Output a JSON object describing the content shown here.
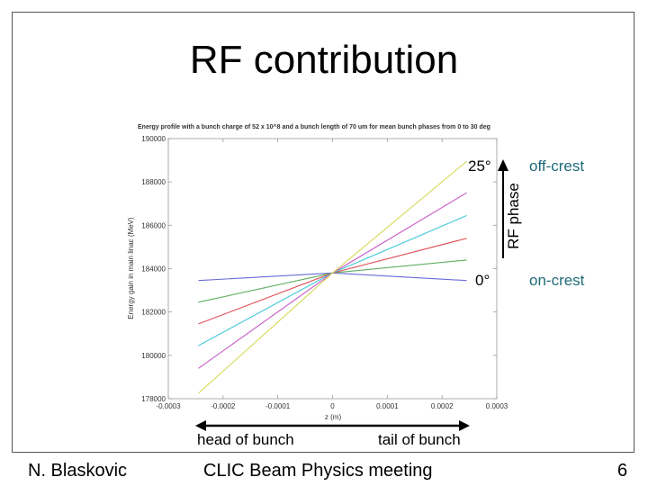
{
  "slide": {
    "title": "RF contribution",
    "footer_left": "N. Blaskovic",
    "footer_center": "CLIC Beam Physics meeting",
    "footer_right": "6"
  },
  "annotations": {
    "phase_max": "25°",
    "phase_min": "0°",
    "phase_axis": "RF phase",
    "off_crest": "off-crest",
    "on_crest": "on-crest",
    "head": "head of bunch",
    "tail": "tail of bunch"
  },
  "colors": {
    "annotation_teal": "#1f6b78",
    "series": [
      "#6a6ad8",
      "#5fae5f",
      "#e0505a",
      "#40c8d8",
      "#c858c8",
      "#d8d858"
    ]
  },
  "chart_data": {
    "type": "line",
    "title": "Energy profile with a bunch charge of 52 x 10^8 and a bunch length of 70 um for mean bunch phases from 0 to 30 deg",
    "xlabel": "z (m)",
    "ylabel": "Energy gain in main linac (MeV)",
    "xlim": [
      -0.0003,
      0.0003
    ],
    "ylim": [
      178000,
      190000
    ],
    "xticks": [
      "-0.0003",
      "-0.0002",
      "-0.0001",
      "0",
      "0.0001",
      "0.0002",
      "0.0003"
    ],
    "yticks": [
      "178000",
      "180000",
      "182000",
      "184000",
      "186000",
      "188000",
      "190000"
    ],
    "grid": false,
    "series": [
      {
        "x": [
          -0.000245,
          0,
          0.000245
        ],
        "y": [
          183450,
          183800,
          183450
        ]
      },
      {
        "x": [
          -0.000245,
          0,
          0.000245
        ],
        "y": [
          182450,
          183800,
          184400
        ]
      },
      {
        "x": [
          -0.000245,
          0,
          0.000245
        ],
        "y": [
          181450,
          183800,
          185400
        ]
      },
      {
        "x": [
          -0.000245,
          0,
          0.000245
        ],
        "y": [
          180450,
          183800,
          186450
        ]
      },
      {
        "x": [
          -0.000245,
          0,
          0.000245
        ],
        "y": [
          179400,
          183800,
          187500
        ]
      },
      {
        "x": [
          -0.000245,
          0,
          0.000245
        ],
        "y": [
          178250,
          183800,
          188950
        ]
      }
    ]
  }
}
